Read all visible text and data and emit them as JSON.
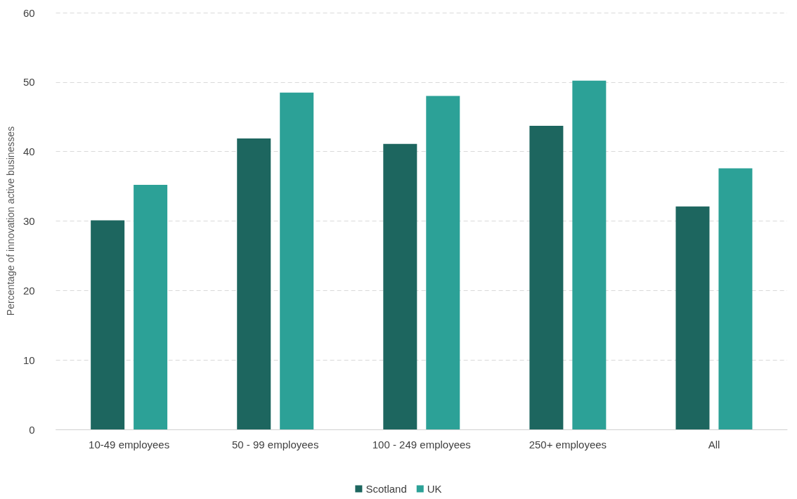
{
  "chart_data": {
    "type": "bar",
    "ylabel": "Percentage of innovation active businesses",
    "categories": [
      "10-49 employees",
      "50 - 99 employees",
      "100 - 249 employees",
      "250+ employees",
      "All"
    ],
    "series": [
      {
        "name": "Scotland",
        "color": "#1d665f",
        "values": [
          30.1,
          41.9,
          41.1,
          43.7,
          32.1
        ]
      },
      {
        "name": "UK",
        "color": "#2ca197",
        "values": [
          35.2,
          48.5,
          48.0,
          50.2,
          37.6
        ]
      }
    ],
    "ylim": [
      0,
      60
    ],
    "yticks": [
      0,
      10,
      20,
      30,
      40,
      50,
      60
    ],
    "grid": "y",
    "legend": "bottom"
  }
}
